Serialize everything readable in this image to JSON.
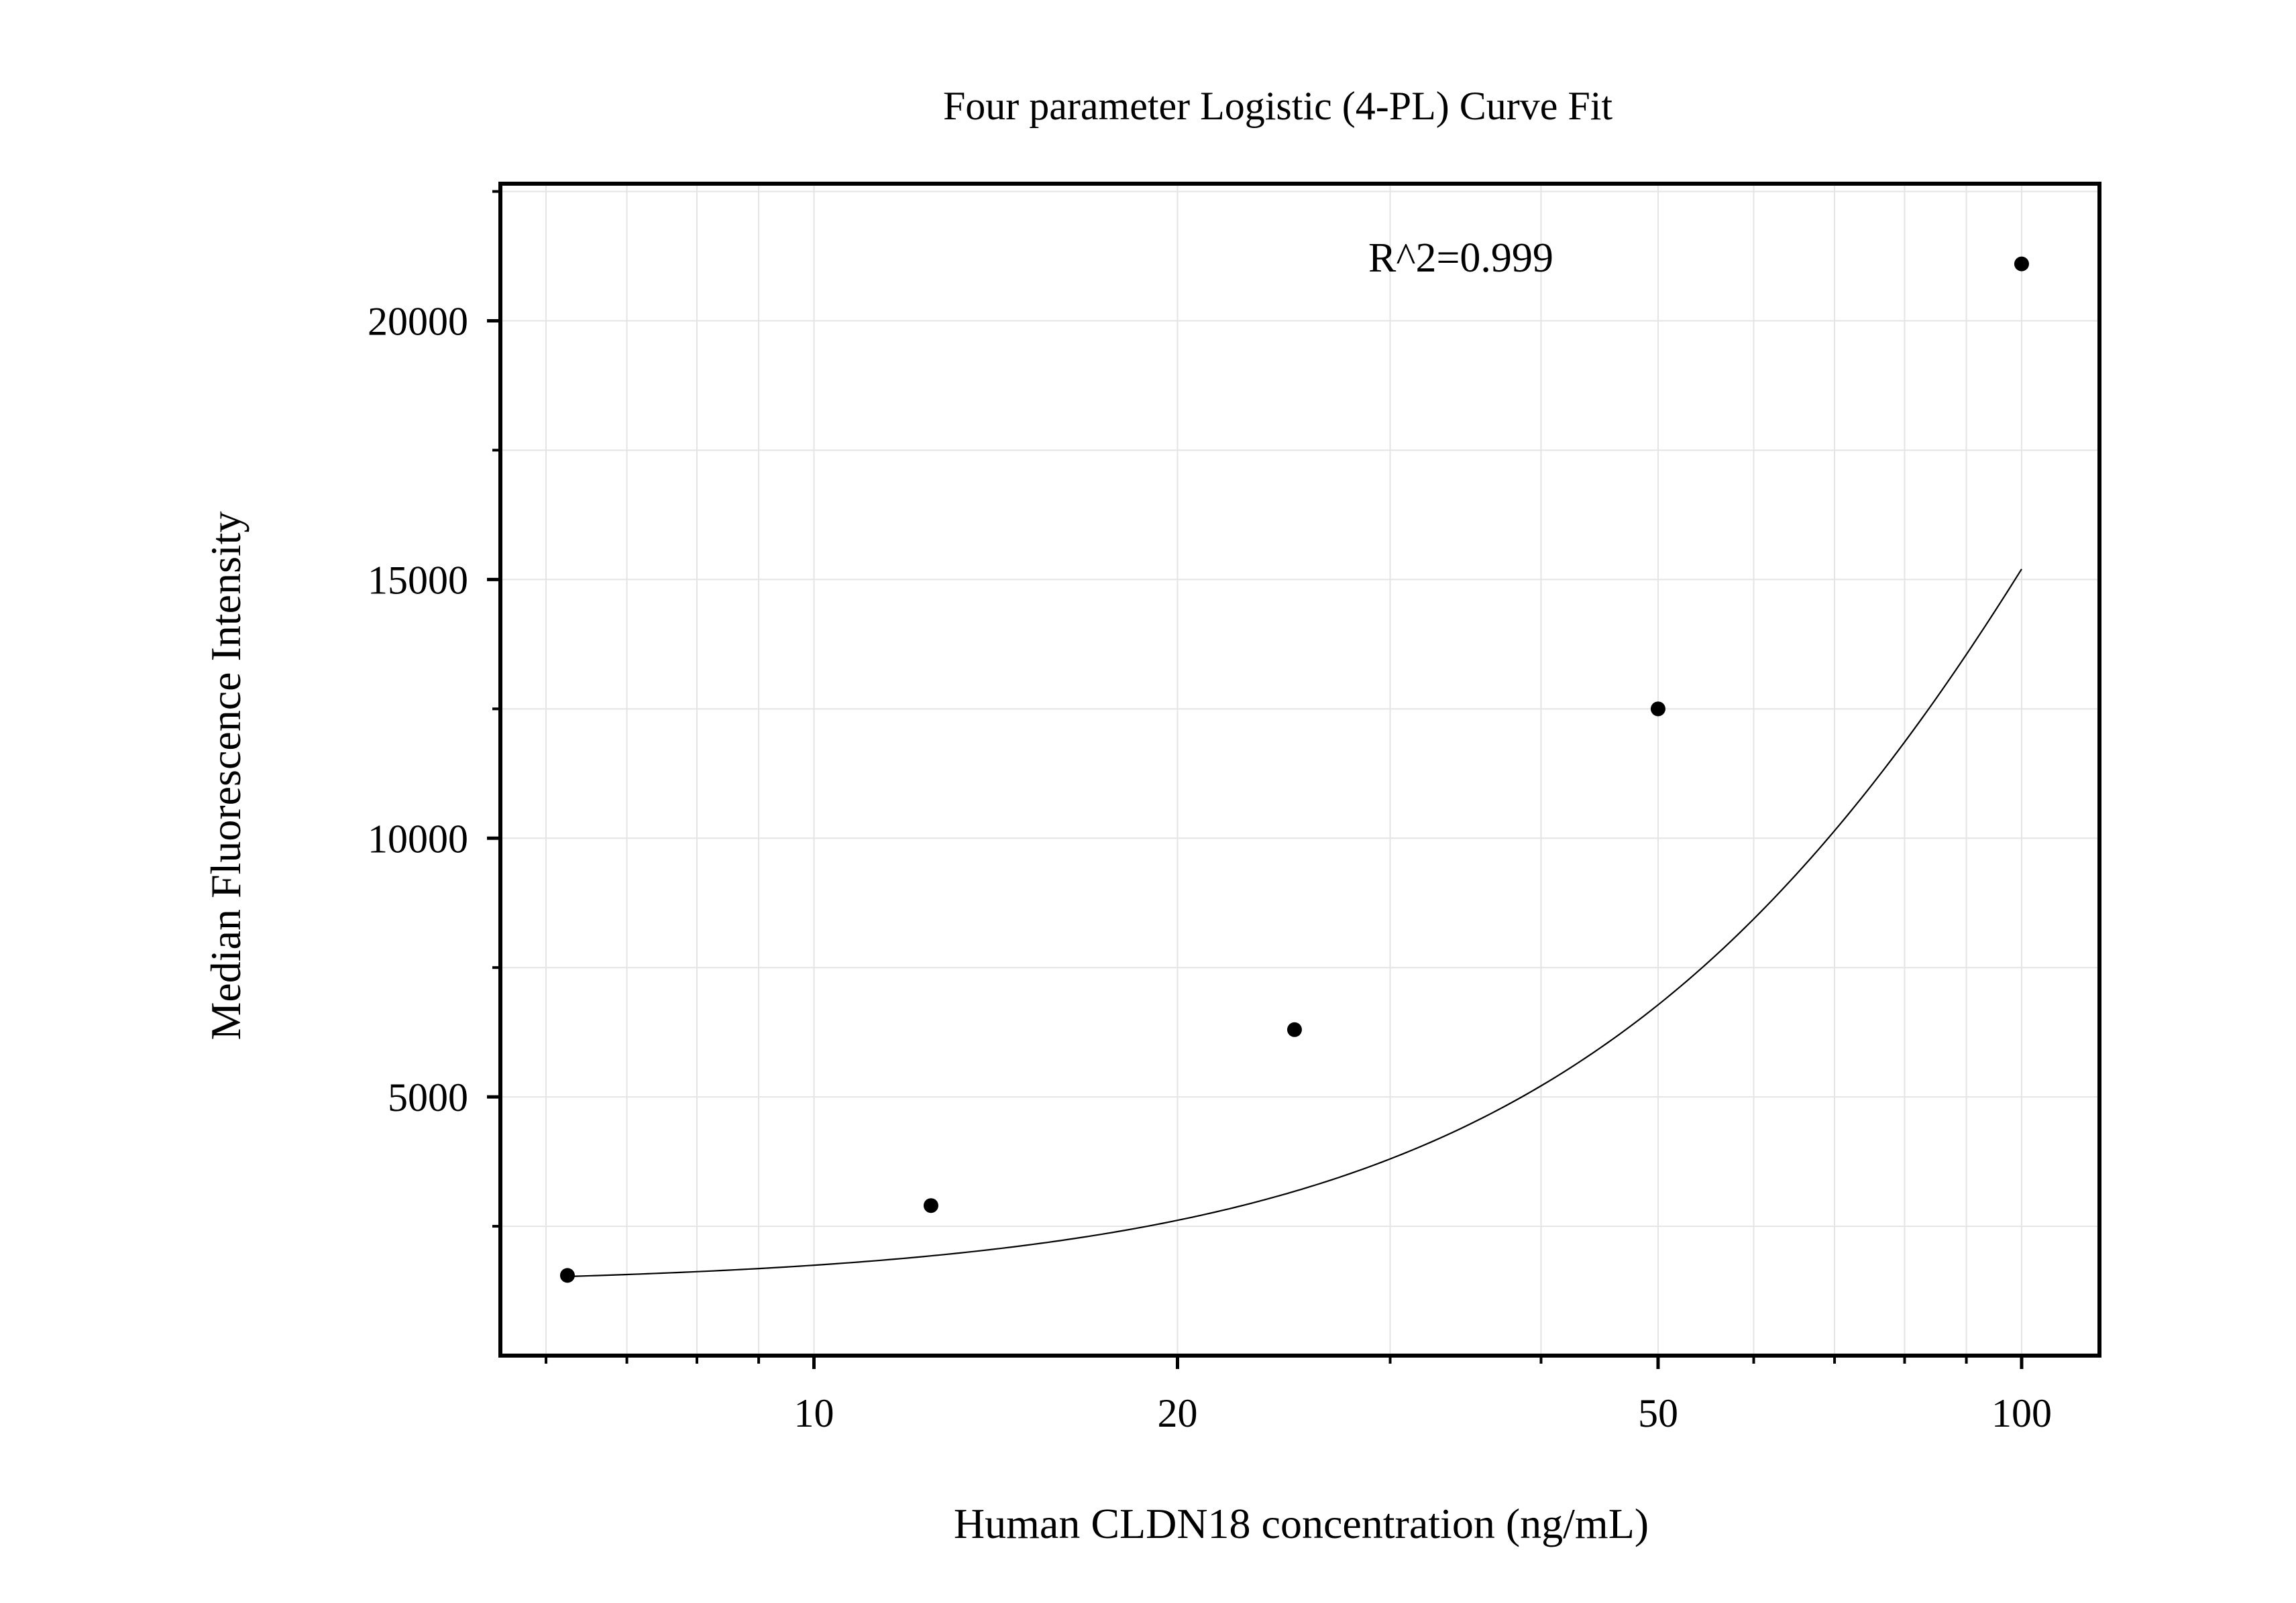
{
  "chart_data": {
    "type": "scatter",
    "title": "Four parameter Logistic (4-PL) Curve Fit",
    "xlabel": "Human CLDN18 concentration (ng/mL)",
    "ylabel": "Median Fluorescence Intensity",
    "x_scale": "log",
    "xlim": [
      5.5,
      116
    ],
    "ylim": [
      0,
      22650
    ],
    "x_ticks": [
      10,
      20,
      50,
      100
    ],
    "x_tick_labels": [
      "10",
      "20",
      "50",
      "100"
    ],
    "x_minor_ticks": [
      6,
      7,
      8,
      9,
      30,
      40,
      60,
      70,
      80,
      90
    ],
    "y_ticks": [
      5000,
      10000,
      15000,
      20000
    ],
    "y_tick_labels": [
      "5000",
      "10000",
      "15000",
      "20000"
    ],
    "y_minor_ticks": [
      2500,
      7500,
      12500,
      17500,
      22500
    ],
    "grid": true,
    "legend": "none",
    "series": [
      {
        "x": [
          6.25,
          12.5,
          25,
          50,
          100
        ],
        "y": [
          1550,
          2900,
          6300,
          12500,
          21100
        ]
      }
    ],
    "fit_curve": {
      "model": "4PL",
      "A": 1350,
      "B": 1.7,
      "C": 160,
      "D": 46000
    },
    "annotations": [
      {
        "text": "R^2=0.999"
      }
    ],
    "colors": {
      "points": "#000000",
      "curve": "#000000",
      "grid": "#e4e4e4",
      "frame": "#000000"
    }
  }
}
